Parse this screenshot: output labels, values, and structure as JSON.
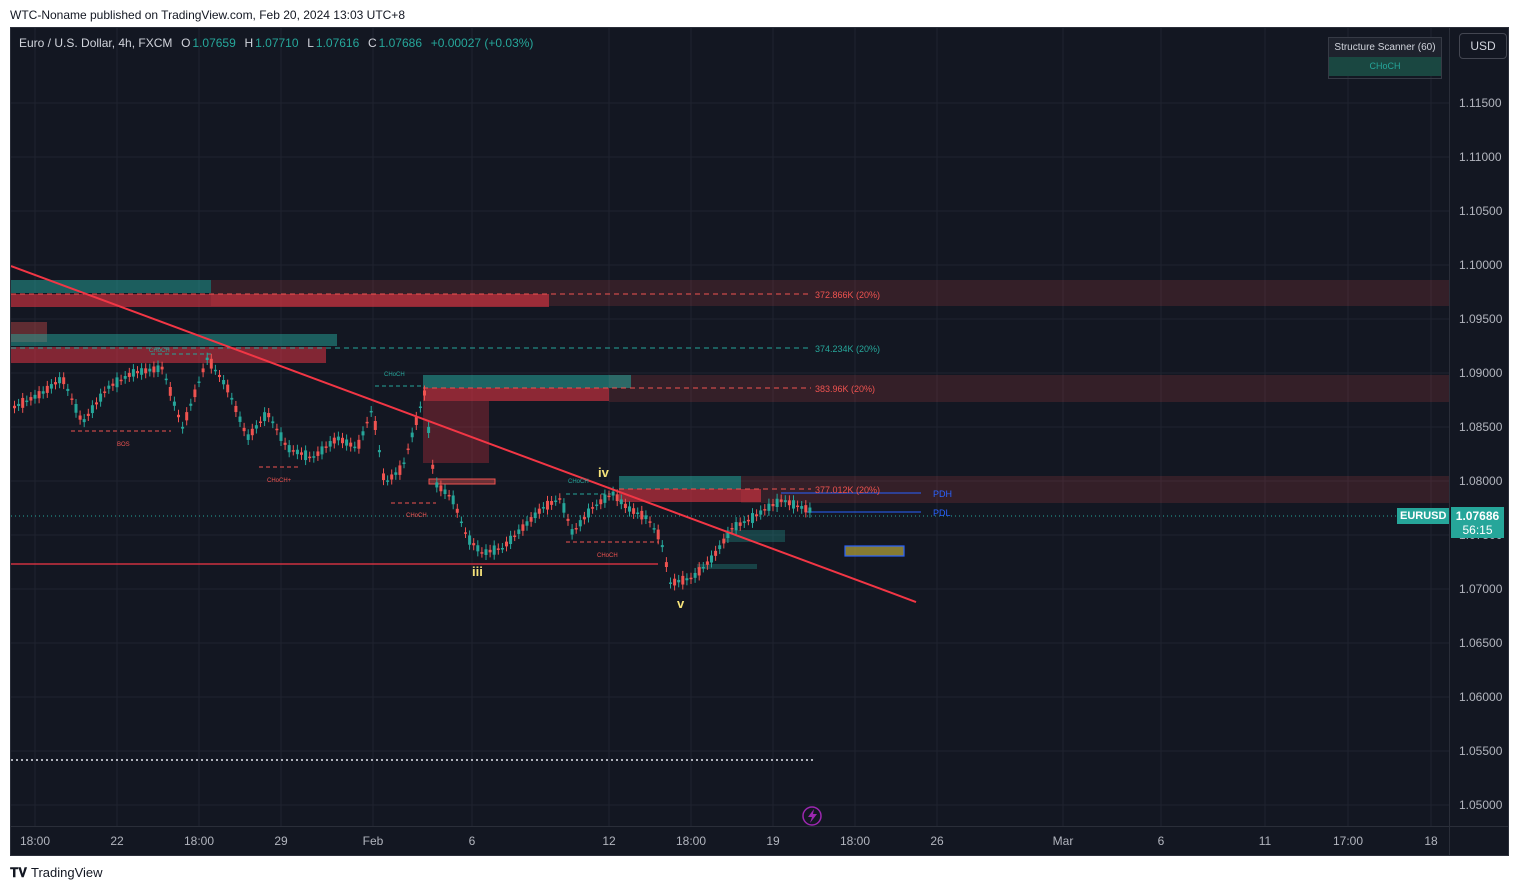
{
  "publisher": "WTC-Noname published on TradingView.com, Feb 20, 2024 13:03 UTC+8",
  "legend": {
    "symbol": "Euro / U.S. Dollar, 4h, FXCM",
    "o_label": "O",
    "o": "1.07659",
    "h_label": "H",
    "h": "1.07710",
    "l_label": "L",
    "l": "1.07616",
    "c_label": "C",
    "c": "1.07686",
    "change": "+0.00027 (+0.03%)"
  },
  "scanner": {
    "title": "Structure Scanner (60)",
    "signal": "CHoCH"
  },
  "currency_button": "USD",
  "price_axis": [
    "1.11500",
    "1.11000",
    "1.10500",
    "1.10000",
    "1.09500",
    "1.09000",
    "1.08500",
    "1.08000",
    "1.07500",
    "1.07000",
    "1.06500",
    "1.06000",
    "1.05500",
    "1.05000"
  ],
  "time_axis": [
    "18:00",
    "22",
    "18:00",
    "29",
    "Feb",
    "6",
    "12",
    "18:00",
    "19",
    "18:00",
    "26",
    "Mar",
    "6",
    "11",
    "17:00",
    "18"
  ],
  "current": {
    "symbol": "EURUSD",
    "price": "1.07686",
    "countdown": "56:15"
  },
  "zones": {
    "z1": "372.866K (20%)",
    "z2": "374.234K (20%)",
    "z3": "383.96K (20%)",
    "z4": "377.012K (20%)"
  },
  "levels": {
    "pdh": "PDH",
    "pdl": "PDL"
  },
  "structure_labels": {
    "bos": "BOS",
    "choch": "CHoCH",
    "choch_plus": "CHoCH+"
  },
  "waves": {
    "iii": "iii",
    "iv": "iv",
    "v": "v"
  },
  "footer": {
    "brand": "TradingView"
  },
  "colors": {
    "bull": "#26a69a",
    "bear": "#ef5350",
    "bg": "#131722",
    "trend": "#f23645",
    "text": "#b2b5be"
  }
}
